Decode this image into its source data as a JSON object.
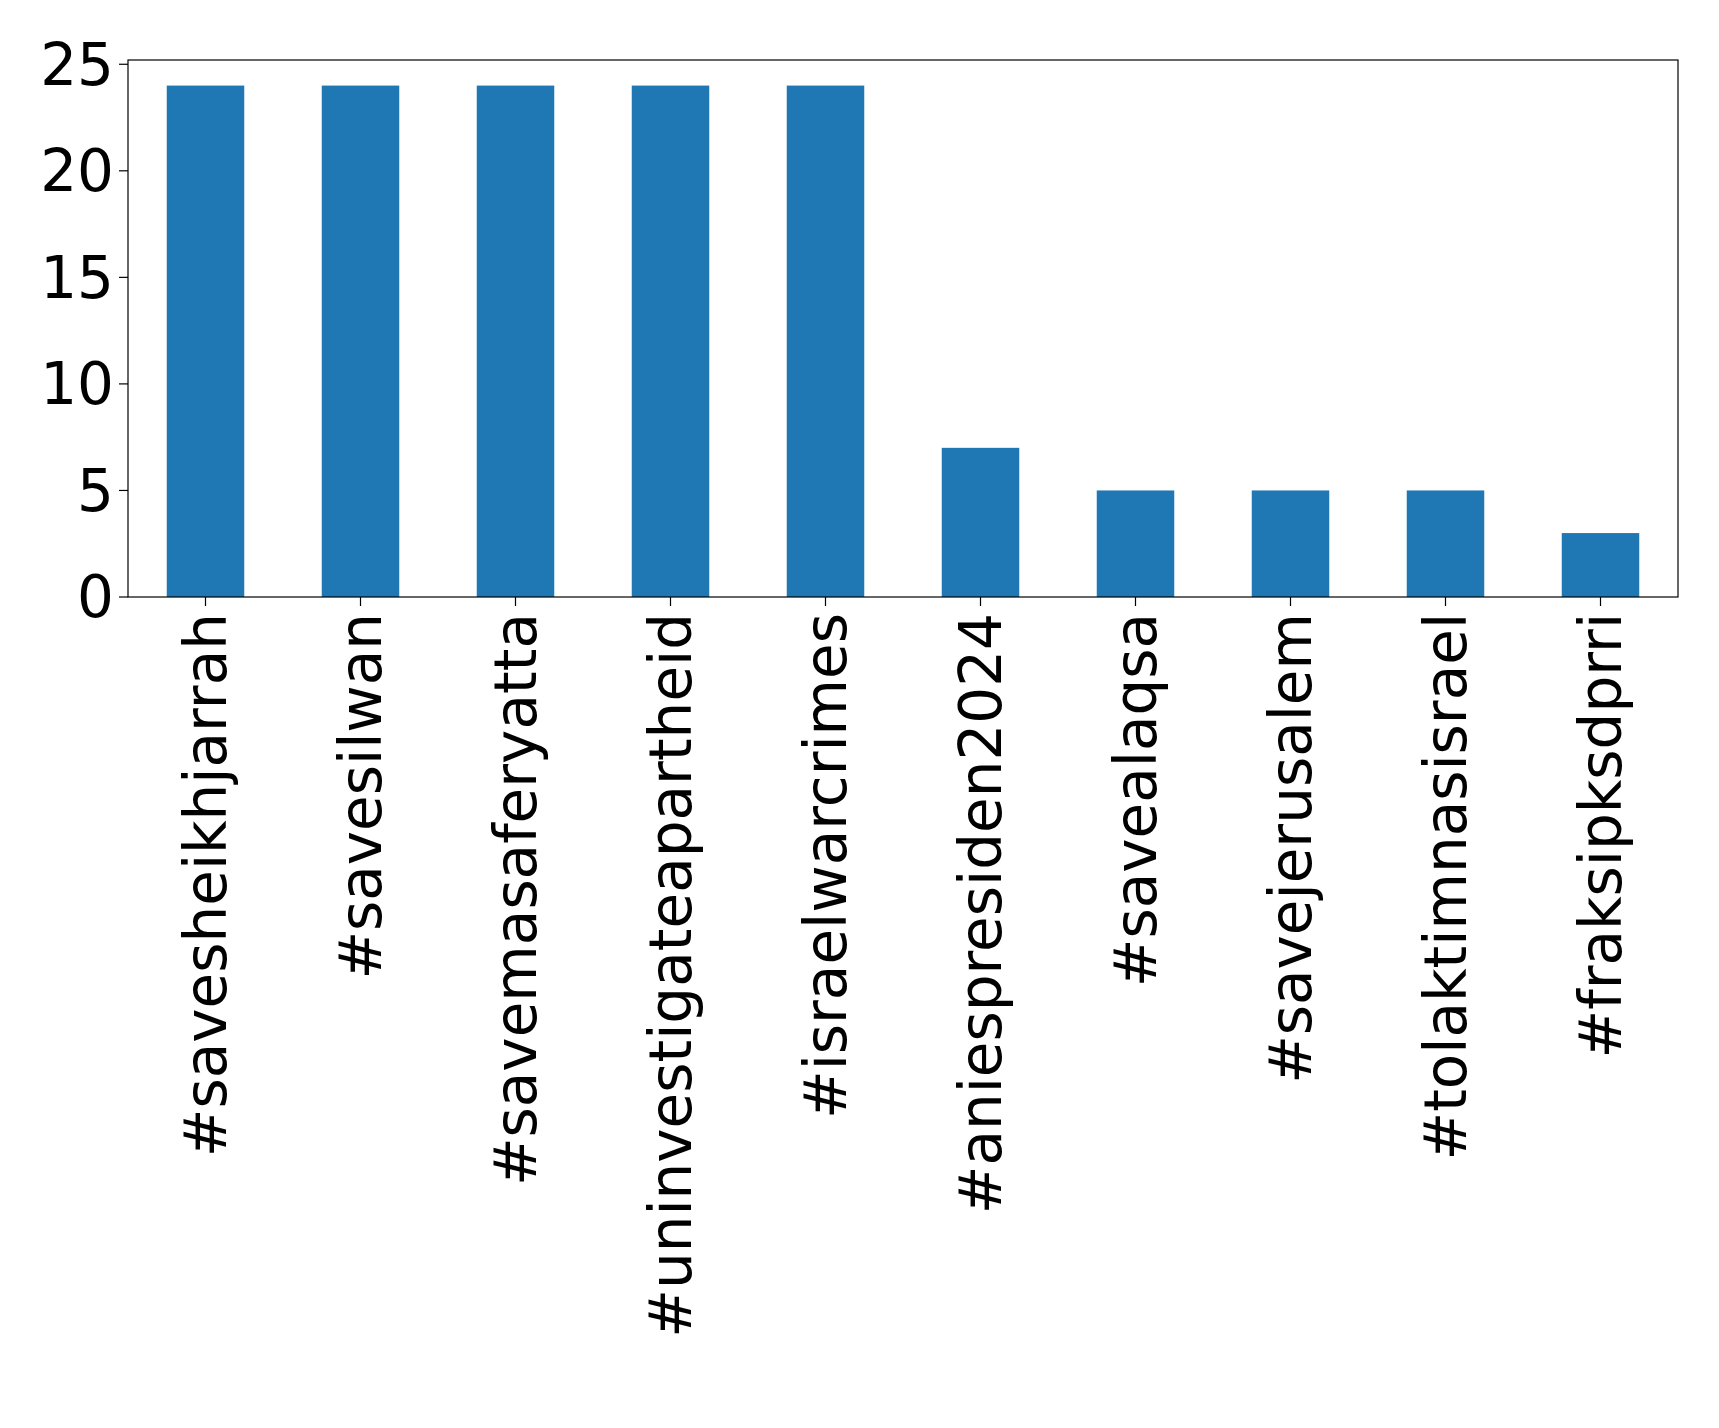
{
  "chart_data": {
    "type": "bar",
    "categories": [
      "#savesheikhjarrah",
      "#savesilwan",
      "#savemasaferyatta",
      "#uninvestigateapartheid",
      "#israelwarcrimes",
      "#aniespresiden2024",
      "#savealaqsa",
      "#savejerusalem",
      "#tolaktimnasisrael",
      "#fraksipksdprri"
    ],
    "values": [
      24,
      24,
      24,
      24,
      24,
      7,
      5,
      5,
      5,
      3
    ],
    "color": "#1f77b4",
    "ylim": [
      0,
      25.2
    ],
    "yticks": [
      0,
      5,
      10,
      15,
      20,
      25
    ],
    "grid": false
  }
}
